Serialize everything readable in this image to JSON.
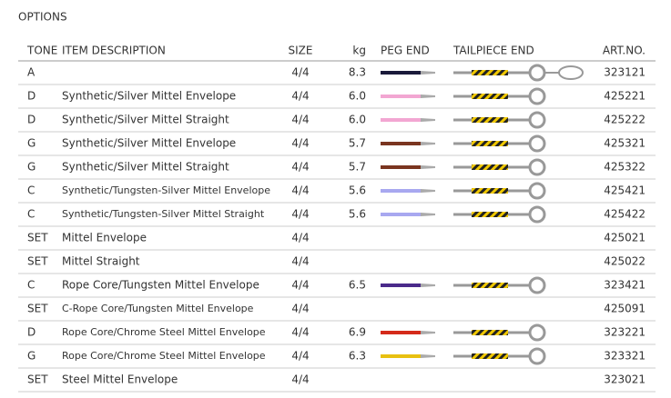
{
  "title": "OPTIONS",
  "table": {
    "header": [
      "TONE",
      "ITEM DESCRIPTION",
      "SIZE",
      "kg",
      "PEG END",
      "TAILPIECE END",
      "ART.NO."
    ],
    "rows": [
      {
        "tone": "A",
        "description": null,
        "size": "4/4",
        "kg": "8.3",
        "peg_color": "#1a1a3a",
        "art_no": "323121"
      },
      {
        "tone": "D",
        "description": "Synthetic/Silver Mittel Envelope",
        "size": "4/4",
        "kg": "6.0",
        "peg_color": "#f2a6d2",
        "art_no": "425221"
      },
      {
        "tone": "D",
        "description": "Synthetic/Silver Mittel Straight",
        "size": "4/4",
        "kg": "6.0",
        "peg_color": "#f2a6d2",
        "art_no": "425222"
      },
      {
        "tone": "G",
        "description": "Synthetic/Silver Mittel Envelope",
        "size": "4/4",
        "kg": "5.7",
        "peg_color": "#7a3520",
        "art_no": "425321"
      },
      {
        "tone": "G",
        "description": "Synthetic/Silver Mittel Straight",
        "size": "4/4",
        "kg": "5.7",
        "peg_color": "#7a3520",
        "art_no": "425322"
      },
      {
        "tone": "C",
        "description": "Synthetic/Tungsten-Silver Mittel Envelope",
        "size": "4/4",
        "kg": "5.6",
        "peg_color": "#a8a8f0",
        "art_no": "425421"
      },
      {
        "tone": "C",
        "description": "Synthetic/Tungsten-Silver Mittel Straight",
        "size": "4/4",
        "kg": "5.6",
        "peg_color": "#a8a8f0",
        "art_no": "425422"
      },
      {
        "tone": "SET",
        "description": "Mittel Envelope",
        "size": "4/4",
        "kg": null,
        "peg_color": null,
        "art_no": "425021"
      },
      {
        "tone": "SET",
        "description": "Mittel Straight",
        "size": "4/4",
        "kg": null,
        "peg_color": null,
        "art_no": "425022"
      },
      {
        "tone": "C",
        "description": "Rope Core/Tungsten Mittel Envelope",
        "size": "4/4",
        "kg": "6.5",
        "peg_color": "#4a2a8a",
        "art_no": "323421"
      },
      {
        "tone": "SET",
        "description": "C-Rope Core/Tungsten Mittel Envelope",
        "size": "4/4",
        "kg": null,
        "peg_color": null,
        "art_no": "425091"
      },
      {
        "tone": "D",
        "description": "Rope Core/Chrome Steel Mittel Envelope",
        "size": "4/4",
        "kg": "6.9",
        "peg_color": "#d42a1a",
        "art_no": "323221"
      },
      {
        "tone": "G",
        "description": "Rope Core/Chrome Steel Mittel Envelope",
        "size": "4/4",
        "kg": "6.3",
        "peg_color": "#e8c010",
        "art_no": "323321"
      },
      {
        "tone": "SET",
        "description": "Steel Mittel Envelope",
        "size": "4/4",
        "kg": null,
        "peg_color": null,
        "art_no": "323021"
      }
    ]
  }
}
